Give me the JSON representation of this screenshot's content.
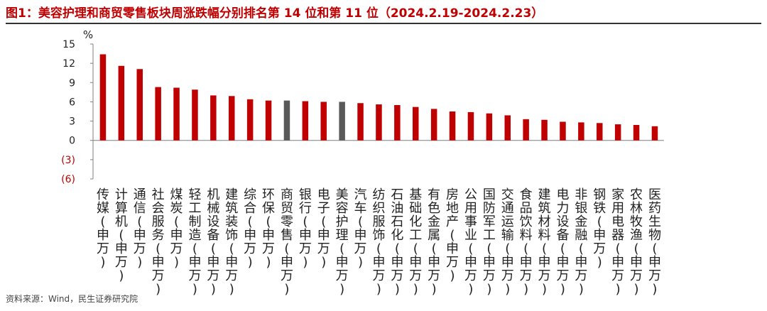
{
  "title": "图1：美容护理和商贸零售板块周涨跌幅分别排名第 14 位和第 11 位（2024.2.19-2024.2.23）",
  "source": "资料来源：Wind，民生证券研究院",
  "colors": {
    "title": "#c00000",
    "bar": "#c00000",
    "highlight": "#595959",
    "negative_tick": "#c00000"
  },
  "chart_data": {
    "type": "bar",
    "ylabel": "%",
    "ylim": [
      -6,
      15
    ],
    "yticks": [
      15,
      12,
      9,
      6,
      3,
      0,
      -3,
      -6
    ],
    "ytick_labels": [
      "15",
      "12",
      "9",
      "6",
      "3",
      "0",
      "(3)",
      "(6)"
    ],
    "grid": false,
    "legend": "none",
    "categories": [
      "传媒(申万)",
      "计算机(申万)",
      "通信(申万)",
      "社会服务(申万)",
      "煤炭(申万)",
      "轻工制造(申万)",
      "机械设备(申万)",
      "建筑装饰(申万)",
      "综合(申万)",
      "环保(申万)",
      "商贸零售(申万)",
      "银行(申万)",
      "电子(申万)",
      "美容护理(申万)",
      "汽车(申万)",
      "纺织服饰(申万)",
      "石油石化(申万)",
      "基础化工(申万)",
      "有色金属(申万)",
      "房地产(申万)",
      "公用事业(申万)",
      "国防军工(申万)",
      "交通运输(申万)",
      "食品饮料(申万)",
      "建筑材料(申万)",
      "电力设备(申万)",
      "非银金融(申万)",
      "钢铁(申万)",
      "家用电器(申万)",
      "农林牧渔(申万)",
      "医药生物(申万)"
    ],
    "values": [
      13.4,
      11.6,
      11.1,
      8.3,
      8.2,
      7.9,
      7.0,
      6.9,
      6.4,
      6.2,
      6.2,
      6.1,
      6.0,
      6.0,
      5.8,
      5.6,
      5.5,
      5.2,
      4.9,
      4.5,
      4.4,
      4.2,
      3.9,
      3.3,
      3.2,
      2.9,
      2.8,
      2.7,
      2.5,
      2.4,
      2.2
    ],
    "highlight": [
      "商贸零售(申万)",
      "美容护理(申万)"
    ]
  }
}
